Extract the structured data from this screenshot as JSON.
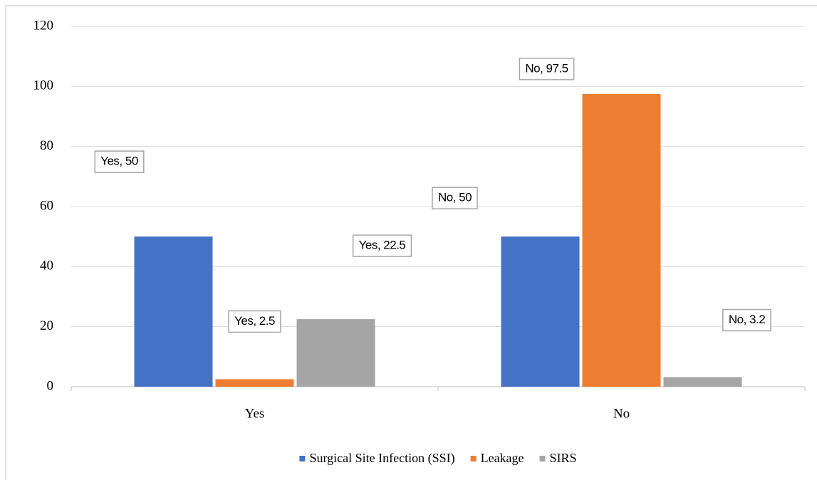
{
  "chart_data": {
    "type": "bar",
    "categories": [
      "Yes",
      "No"
    ],
    "series": [
      {
        "name": "Surgical Site Infection (SSI)",
        "color": "#4472c4",
        "values": [
          50,
          50
        ],
        "value_labels": [
          "Yes, 50",
          "No, 50"
        ]
      },
      {
        "name": "Leakage",
        "color": "#ed7d31",
        "values": [
          2.5,
          97.5
        ],
        "value_labels": [
          "Yes, 2.5",
          "No, 97.5"
        ]
      },
      {
        "name": "SIRS",
        "color": "#a5a5a5",
        "values": [
          22.5,
          3.2
        ],
        "value_labels": [
          "Yes, 22.5",
          "No, 3.2"
        ]
      }
    ],
    "ylim": [
      0,
      120
    ],
    "yticks": [
      0,
      20,
      40,
      60,
      80,
      100,
      120
    ],
    "grid": true,
    "legend": "bottom"
  }
}
